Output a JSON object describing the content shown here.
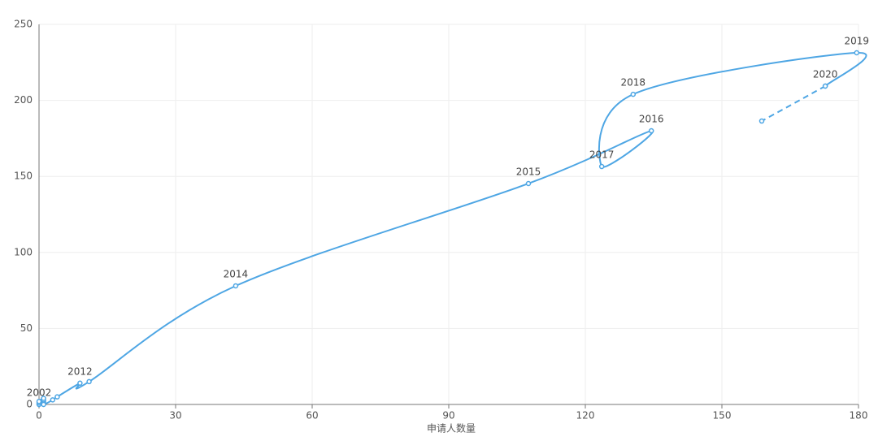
{
  "chart_data": {
    "type": "line",
    "x_label": "申请人数量",
    "xlim": [
      0,
      180
    ],
    "xticks": [
      0,
      30,
      60,
      90,
      120,
      150,
      180
    ],
    "ylim": [
      0,
      250
    ],
    "yticks": [
      0,
      50,
      100,
      150,
      200,
      250
    ],
    "grid": true,
    "smooth": true,
    "series": [
      {
        "color": "#4ea6e4",
        "line_style": "solid",
        "x": [
          0,
          1,
          1,
          1,
          0,
          1,
          0,
          1,
          3,
          4,
          9,
          11,
          43.2,
          107.5,
          134.5,
          123.6,
          130.5,
          179.6,
          172.7
        ],
        "values": [
          0,
          1,
          2,
          3,
          1,
          4,
          2,
          0,
          3,
          5,
          14,
          15,
          78,
          145.3,
          180,
          156.5,
          204,
          231.3,
          209.4
        ],
        "labels": [
          "2002",
          null,
          null,
          null,
          null,
          null,
          null,
          null,
          null,
          null,
          "2012",
          null,
          "2014",
          "2015",
          "2016",
          "2017",
          "2018",
          "2019",
          "2020"
        ]
      },
      {
        "color": "#4ea6e4",
        "line_style": "dashed",
        "x": [
          172.7,
          158.75
        ],
        "values": [
          209.4,
          186.4
        ],
        "labels": [
          null,
          null
        ]
      }
    ]
  }
}
